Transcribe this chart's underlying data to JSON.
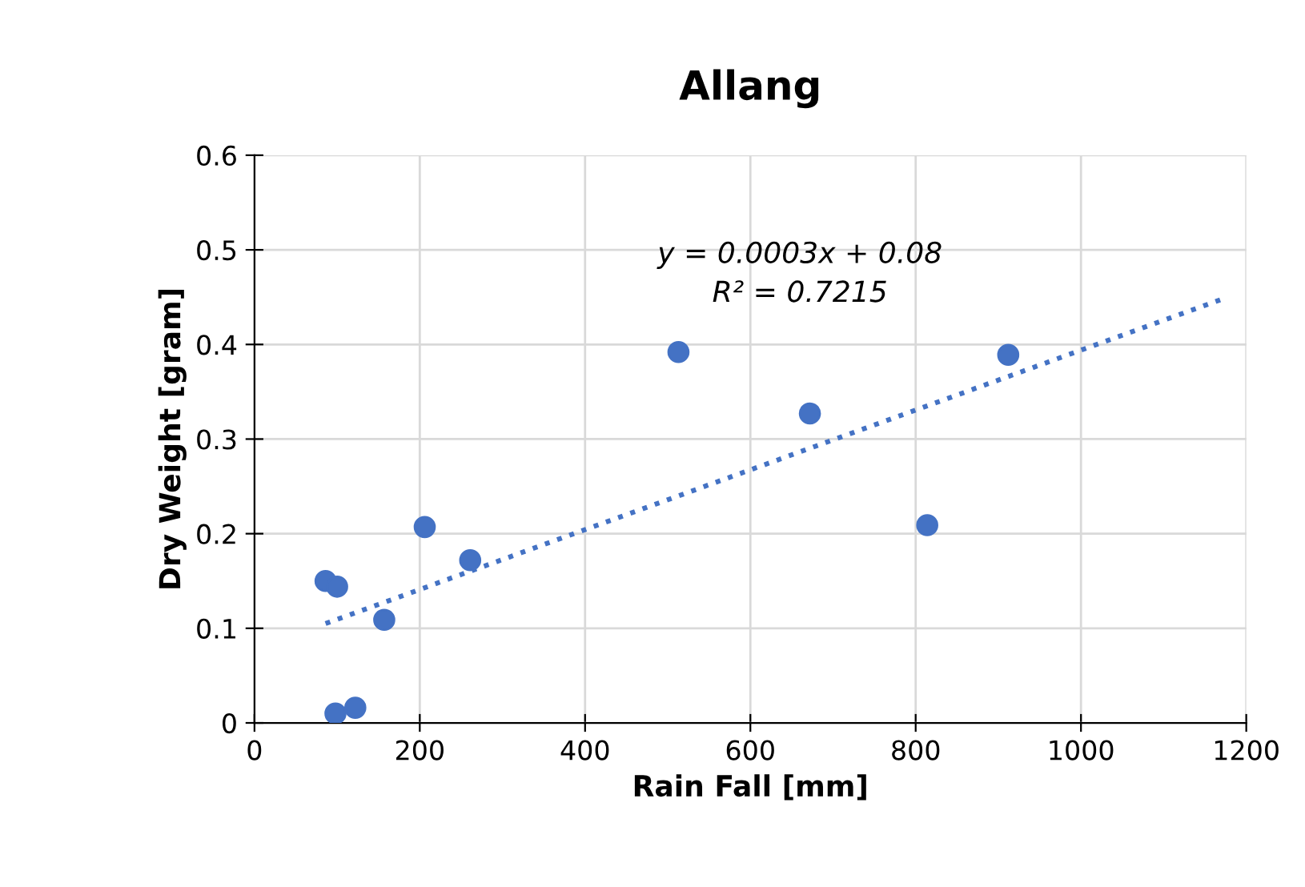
{
  "chart_data": {
    "type": "scatter",
    "title": "Allang",
    "xlabel": "Rain Fall [mm]",
    "ylabel": "Dry Weight [gram]",
    "annotations": [
      "y = 0.0003x + 0.08\nR² = 0.7215"
    ],
    "series": [
      {
        "color": "#4472c4",
        "marker": "circle",
        "x": [
          86,
          100,
          98,
          122,
          157,
          206,
          261,
          513,
          672,
          814,
          912
        ],
        "values": [
          0.15,
          0.144,
          0.01,
          0.016,
          0.109,
          0.207,
          0.172,
          0.392,
          0.327,
          0.209,
          0.389
        ]
      },
      {
        "type": "line",
        "color": "#4472c4",
        "marker": "none",
        "line_style": "dotted",
        "x": [
          86,
          1171
        ],
        "values": [
          0.105,
          0.448
        ]
      }
    ],
    "xlim": [
      0,
      1200
    ],
    "xticks": [
      0,
      200,
      400,
      600,
      800,
      1000,
      1200
    ],
    "ylim": [
      0,
      0.6
    ],
    "yticks": [
      0,
      0.1,
      0.2,
      0.3,
      0.4,
      0.5,
      0.6
    ],
    "grid": true,
    "legend": false
  }
}
